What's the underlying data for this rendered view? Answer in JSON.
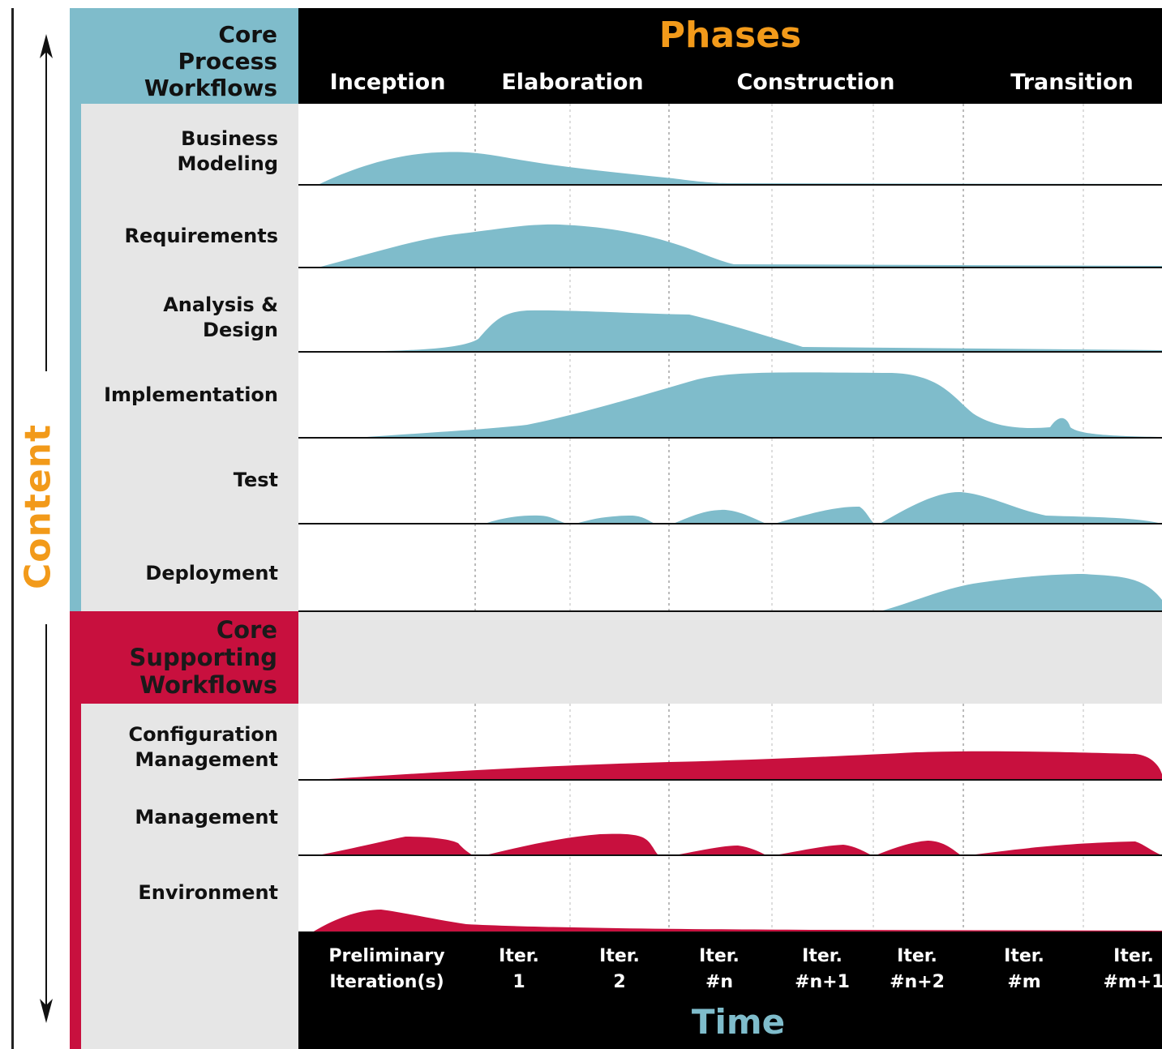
{
  "header": {
    "core_process_workflows": "Core\nProcess\nWorkflows",
    "phases_title": "Phases",
    "phases": [
      "Inception",
      "Elaboration",
      "Construction",
      "Transition"
    ]
  },
  "axis": {
    "content_label": "Content",
    "time_label": "Time"
  },
  "core_process": [
    {
      "label": "Business\nModeling",
      "color": "#7fbccb"
    },
    {
      "label": "Requirements",
      "color": "#7fbccb"
    },
    {
      "label": "Analysis &\nDesign",
      "color": "#7fbccb"
    },
    {
      "label": "Implementation",
      "color": "#7fbccb"
    },
    {
      "label": "Test",
      "color": "#7fbccb"
    },
    {
      "label": "Deployment",
      "color": "#7fbccb"
    }
  ],
  "core_supporting_header": "Core\nSupporting\nWorkflows",
  "core_supporting": [
    {
      "label": "Configuration\nManagement",
      "color": "#c8103e"
    },
    {
      "label": "Management",
      "color": "#c8103e"
    },
    {
      "label": "Environment",
      "color": "#c8103e"
    }
  ],
  "iterations": [
    "Preliminary\nIteration(s)",
    "Iter.\n1",
    "Iter.\n2",
    "Iter.\n#n",
    "Iter.\n#n+1",
    "Iter.\n#n+2",
    "Iter.\n#m",
    "Iter.\n#m+1"
  ],
  "colors": {
    "process": "#7fbccb",
    "supporting": "#c8103e",
    "phases_title": "#f29a1a",
    "content_label": "#f29a1a",
    "time_label": "#7fbccb"
  }
}
